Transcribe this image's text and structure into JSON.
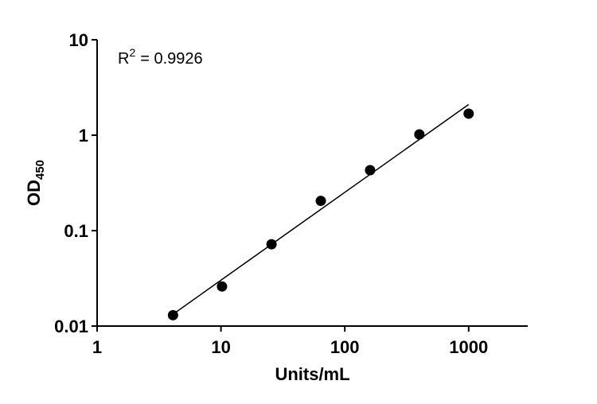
{
  "chart_data": {
    "type": "scatter",
    "xlabel": "Units/mL",
    "ylabel_main": "OD",
    "ylabel_sub": "450",
    "x_scale": "log",
    "y_scale": "log",
    "xlim": [
      1,
      3000
    ],
    "ylim": [
      0.01,
      10
    ],
    "x_ticks": [
      1,
      10,
      100,
      1000
    ],
    "x_tick_labels": [
      "1",
      "10",
      "100",
      "1000"
    ],
    "y_ticks": [
      0.01,
      0.1,
      1,
      10
    ],
    "y_tick_labels": [
      "0.01",
      "0.1",
      "1",
      "10"
    ],
    "annotation": {
      "r_label": "R",
      "r_sup": "2",
      "r_value": "= 0.9926"
    },
    "points": [
      {
        "x": 4.1,
        "y": 0.013
      },
      {
        "x": 10.2,
        "y": 0.026
      },
      {
        "x": 25.6,
        "y": 0.072
      },
      {
        "x": 64,
        "y": 0.205
      },
      {
        "x": 160,
        "y": 0.43
      },
      {
        "x": 400,
        "y": 1.02
      },
      {
        "x": 1000,
        "y": 1.68
      }
    ],
    "fit_line": {
      "x": [
        4.1,
        1000
      ],
      "y": [
        0.0133,
        2.1
      ]
    },
    "grid": false,
    "legend": "none"
  }
}
